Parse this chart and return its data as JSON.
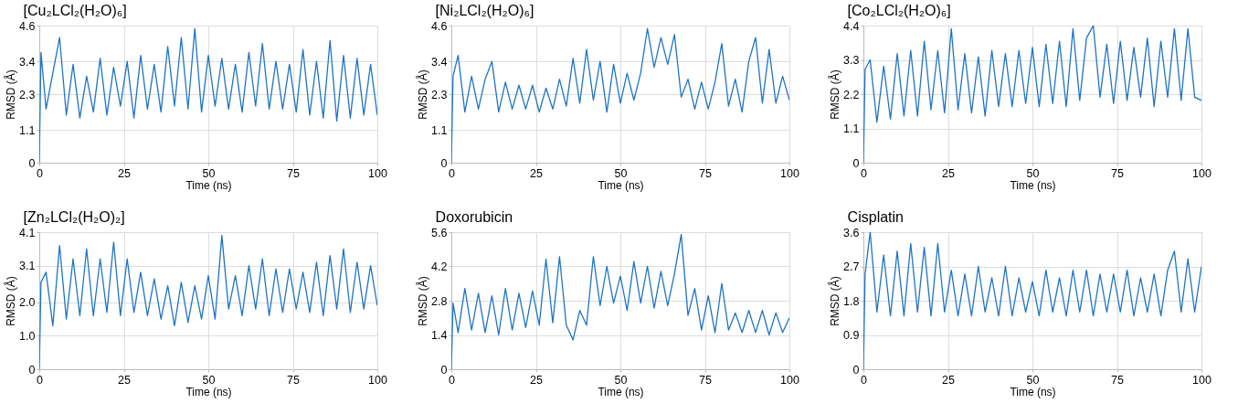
{
  "chart_data": [
    {
      "type": "line",
      "title": "[Cu₂LCl₂(H₂O)₆]",
      "xlabel": "Time (ns)",
      "ylabel": "RMSD (Å)",
      "color": "#1f74c4",
      "grid": true,
      "xlim": [
        0,
        100
      ],
      "xticks": [
        0,
        25,
        50,
        75,
        100
      ],
      "ylim": [
        0,
        4.6
      ],
      "yticks": [
        0,
        1.1,
        2.3,
        3.4,
        4.6
      ],
      "x": [
        0,
        0.5,
        2,
        4,
        6,
        8,
        10,
        12,
        14,
        16,
        18,
        20,
        22,
        24,
        26,
        28,
        30,
        32,
        34,
        36,
        38,
        40,
        42,
        44,
        46,
        48,
        50,
        52,
        54,
        56,
        58,
        60,
        62,
        64,
        66,
        68,
        70,
        72,
        74,
        76,
        78,
        80,
        82,
        84,
        86,
        88,
        90,
        92,
        94,
        96,
        98,
        100
      ],
      "values": [
        0,
        3.7,
        1.8,
        3.0,
        4.2,
        1.6,
        3.3,
        1.5,
        2.9,
        1.7,
        3.5,
        1.6,
        3.2,
        1.9,
        3.4,
        1.5,
        3.6,
        1.8,
        3.3,
        1.7,
        3.9,
        1.9,
        4.2,
        1.8,
        4.5,
        1.7,
        3.6,
        1.9,
        3.5,
        1.8,
        3.3,
        1.7,
        3.7,
        1.9,
        4.0,
        1.8,
        3.4,
        1.8,
        3.3,
        1.7,
        3.8,
        1.6,
        3.4,
        1.5,
        4.1,
        1.4,
        3.6,
        1.5,
        3.5,
        1.6,
        3.3,
        1.6
      ]
    },
    {
      "type": "line",
      "title": "[Ni₂LCl₂(H₂O)₆]",
      "xlabel": "Time (ns)",
      "ylabel": "RMSD (Å)",
      "color": "#1f74c4",
      "grid": true,
      "xlim": [
        0,
        100
      ],
      "xticks": [
        0,
        25,
        50,
        75,
        100
      ],
      "ylim": [
        0,
        4.6
      ],
      "yticks": [
        0,
        1.1,
        2.3,
        3.4,
        4.6
      ],
      "x": [
        0,
        0.5,
        2,
        4,
        6,
        8,
        10,
        12,
        14,
        16,
        18,
        20,
        22,
        24,
        26,
        28,
        30,
        32,
        34,
        36,
        38,
        40,
        42,
        44,
        46,
        48,
        50,
        52,
        54,
        56,
        58,
        60,
        62,
        64,
        66,
        68,
        70,
        72,
        74,
        76,
        78,
        80,
        82,
        84,
        86,
        88,
        90,
        92,
        94,
        96,
        98,
        100
      ],
      "values": [
        0,
        2.9,
        3.6,
        1.7,
        2.9,
        1.8,
        2.8,
        3.4,
        1.7,
        2.7,
        1.8,
        2.6,
        1.8,
        2.6,
        1.7,
        2.5,
        1.8,
        2.8,
        1.9,
        3.5,
        2.0,
        3.8,
        2.1,
        3.4,
        1.7,
        3.3,
        2.0,
        3.0,
        2.1,
        3.0,
        4.5,
        3.2,
        4.2,
        3.3,
        4.3,
        2.2,
        2.8,
        1.8,
        2.7,
        1.8,
        2.7,
        4.0,
        1.9,
        2.8,
        1.7,
        3.4,
        4.2,
        2.0,
        3.8,
        2.0,
        2.9,
        2.1
      ]
    },
    {
      "type": "line",
      "title": "[Co₂LCl₂(H₂O)₆]",
      "xlabel": "Time (ns)",
      "ylabel": "RMSD (Å)",
      "color": "#1f74c4",
      "grid": true,
      "xlim": [
        0,
        100
      ],
      "xticks": [
        0,
        25,
        50,
        75,
        100
      ],
      "ylim": [
        0,
        4.4
      ],
      "yticks": [
        0,
        1.1,
        2.2,
        3.3,
        4.4
      ],
      "x": [
        0,
        0.5,
        2,
        4,
        6,
        8,
        10,
        12,
        14,
        16,
        18,
        20,
        22,
        24,
        26,
        28,
        30,
        32,
        34,
        36,
        38,
        40,
        42,
        44,
        46,
        48,
        50,
        52,
        54,
        56,
        58,
        60,
        62,
        64,
        66,
        68,
        70,
        72,
        74,
        76,
        78,
        80,
        82,
        84,
        86,
        88,
        90,
        92,
        94,
        96,
        98,
        100
      ],
      "values": [
        0,
        3.0,
        3.3,
        1.3,
        3.1,
        1.4,
        3.5,
        1.5,
        3.6,
        1.5,
        3.9,
        1.7,
        3.6,
        1.6,
        4.3,
        1.7,
        3.5,
        1.6,
        3.4,
        1.5,
        3.6,
        1.8,
        3.5,
        1.8,
        3.6,
        1.9,
        3.7,
        1.8,
        3.8,
        1.9,
        3.9,
        1.8,
        4.3,
        2.0,
        4.0,
        4.4,
        2.1,
        3.8,
        1.9,
        3.9,
        2.0,
        3.7,
        2.1,
        4.0,
        1.8,
        3.9,
        2.1,
        4.3,
        2.0,
        4.3,
        2.1,
        2.0
      ]
    },
    {
      "type": "line",
      "title": "[Zn₂LCl₂(H₂O)₂]",
      "xlabel": "Time (ns)",
      "ylabel": "RMSD (Å)",
      "color": "#1f74c4",
      "grid": true,
      "xlim": [
        0,
        100
      ],
      "xticks": [
        0,
        25,
        50,
        75,
        100
      ],
      "ylim": [
        0,
        4.1
      ],
      "yticks": [
        0,
        {
          "value": 1,
          "label": "1.0"
        },
        {
          "value": 2,
          "label": "2.0"
        },
        3.1,
        4.1
      ],
      "x": [
        0,
        0.5,
        2,
        4,
        6,
        8,
        10,
        12,
        14,
        16,
        18,
        20,
        22,
        24,
        26,
        28,
        30,
        32,
        34,
        36,
        38,
        40,
        42,
        44,
        46,
        48,
        50,
        52,
        54,
        56,
        58,
        60,
        62,
        64,
        66,
        68,
        70,
        72,
        74,
        76,
        78,
        80,
        82,
        84,
        86,
        88,
        90,
        92,
        94,
        96,
        98,
        100
      ],
      "values": [
        0,
        2.6,
        2.9,
        1.3,
        3.7,
        1.5,
        3.3,
        1.6,
        3.6,
        1.6,
        3.3,
        1.7,
        3.8,
        1.6,
        3.3,
        1.7,
        2.9,
        1.6,
        2.7,
        1.5,
        2.5,
        1.3,
        2.6,
        1.4,
        2.5,
        1.5,
        2.8,
        1.5,
        4.0,
        1.8,
        2.8,
        1.6,
        3.1,
        1.8,
        3.3,
        1.6,
        3.0,
        1.7,
        3.0,
        1.8,
        2.9,
        1.7,
        3.2,
        1.6,
        3.4,
        1.8,
        3.6,
        1.7,
        3.2,
        1.8,
        3.1,
        1.9
      ]
    },
    {
      "type": "line",
      "title": "Doxorubicin",
      "xlabel": "Time (ns)",
      "ylabel": "RMSD (Å)",
      "color": "#1f74c4",
      "grid": true,
      "xlim": [
        0,
        100
      ],
      "xticks": [
        0,
        25,
        50,
        75,
        100
      ],
      "ylim": [
        0,
        5.6
      ],
      "yticks": [
        0,
        1.4,
        2.8,
        4.2,
        5.6
      ],
      "x": [
        0,
        0.5,
        2,
        4,
        6,
        8,
        10,
        12,
        14,
        16,
        18,
        20,
        22,
        24,
        26,
        28,
        30,
        32,
        34,
        36,
        38,
        40,
        42,
        44,
        46,
        48,
        50,
        52,
        54,
        56,
        58,
        60,
        62,
        64,
        66,
        68,
        70,
        72,
        74,
        76,
        78,
        80,
        82,
        84,
        86,
        88,
        90,
        92,
        94,
        96,
        98,
        100
      ],
      "values": [
        0,
        2.7,
        1.5,
        3.3,
        1.6,
        3.1,
        1.5,
        3.0,
        1.4,
        3.3,
        1.6,
        3.1,
        1.7,
        3.2,
        1.8,
        4.5,
        1.9,
        4.6,
        1.8,
        1.2,
        2.4,
        1.8,
        4.6,
        2.6,
        4.2,
        2.7,
        3.8,
        2.4,
        4.4,
        2.7,
        4.2,
        2.5,
        4.0,
        2.6,
        3.9,
        5.5,
        2.2,
        3.3,
        1.6,
        3.0,
        1.5,
        3.5,
        1.6,
        2.3,
        1.5,
        2.4,
        1.5,
        2.4,
        1.4,
        2.3,
        1.5,
        2.1
      ]
    },
    {
      "type": "line",
      "title": "Cisplatin",
      "xlabel": "Time (ns)",
      "ylabel": "RMSD (Å)",
      "color": "#1f74c4",
      "grid": true,
      "xlim": [
        0,
        100
      ],
      "xticks": [
        0,
        25,
        50,
        75,
        100
      ],
      "ylim": [
        0,
        3.6
      ],
      "yticks": [
        0,
        0.9,
        1.8,
        2.7,
        3.6
      ],
      "x": [
        0,
        0.5,
        2,
        4,
        6,
        8,
        10,
        12,
        14,
        16,
        18,
        20,
        22,
        24,
        26,
        28,
        30,
        32,
        34,
        36,
        38,
        40,
        42,
        44,
        46,
        48,
        50,
        52,
        54,
        56,
        58,
        60,
        62,
        64,
        66,
        68,
        70,
        72,
        74,
        76,
        78,
        80,
        82,
        84,
        86,
        88,
        90,
        92,
        94,
        96,
        98,
        100
      ],
      "values": [
        0,
        2.5,
        3.6,
        1.5,
        3.0,
        1.4,
        3.1,
        1.4,
        3.3,
        1.5,
        3.2,
        1.4,
        3.3,
        1.5,
        2.6,
        1.4,
        2.5,
        1.4,
        2.7,
        1.5,
        2.4,
        1.4,
        2.7,
        1.4,
        2.4,
        1.5,
        2.3,
        1.4,
        2.6,
        1.5,
        2.4,
        1.4,
        2.6,
        1.5,
        2.6,
        1.4,
        2.5,
        1.5,
        2.5,
        1.5,
        2.6,
        1.4,
        2.4,
        1.5,
        2.5,
        1.4,
        2.6,
        3.1,
        1.5,
        2.9,
        1.5,
        2.7
      ]
    }
  ]
}
